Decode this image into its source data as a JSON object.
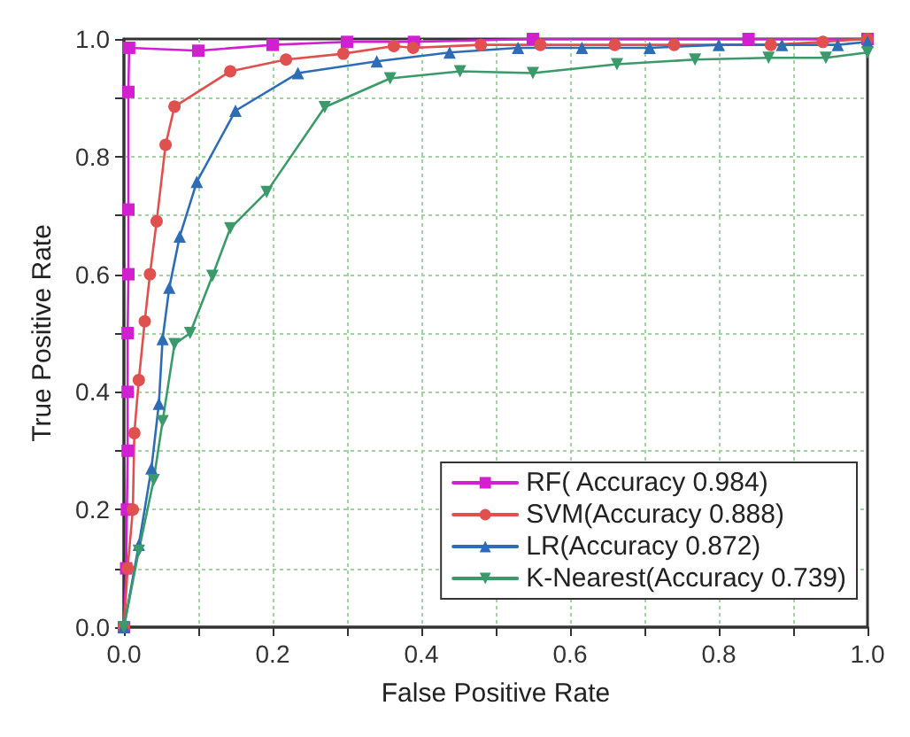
{
  "chart_data": {
    "type": "line",
    "xlabel": "False Positive Rate",
    "ylabel": "True Positive Rate",
    "xlim": [
      0,
      1
    ],
    "ylim": [
      0,
      1
    ],
    "xticks": [
      {
        "value": 0,
        "label": "0.0"
      },
      {
        "value": 0.1,
        "label": null
      },
      {
        "value": 0.2,
        "label": "0.2"
      },
      {
        "value": 0.3,
        "label": null
      },
      {
        "value": 0.4,
        "label": "0.4"
      },
      {
        "value": 0.5,
        "label": null
      },
      {
        "value": 0.6,
        "label": "0.6"
      },
      {
        "value": 0.7,
        "label": null
      },
      {
        "value": 0.8,
        "label": "0.8"
      },
      {
        "value": 0.9,
        "label": null
      },
      {
        "value": 1,
        "label": "1.0"
      }
    ],
    "yticks": [
      {
        "value": 0,
        "label": "0.0"
      },
      {
        "value": 0.1,
        "label": null
      },
      {
        "value": 0.2,
        "label": "0.2"
      },
      {
        "value": 0.3,
        "label": null
      },
      {
        "value": 0.4,
        "label": "0.4"
      },
      {
        "value": 0.5,
        "label": null
      },
      {
        "value": 0.6,
        "label": "0.6"
      },
      {
        "value": 0.7,
        "label": null
      },
      {
        "value": 0.8,
        "label": "0.8"
      },
      {
        "value": 0.9,
        "label": null
      },
      {
        "value": 1,
        "label": "1.0"
      }
    ],
    "grid": true,
    "legend": "bottom right",
    "line_style": "solid",
    "series": [
      {
        "name": "RF( Accuracy 0.984)",
        "color": "#d020d0",
        "marker": "square",
        "x": [
          0,
          0.003,
          0.004,
          0.005,
          0.005,
          0.005,
          0.006,
          0.006,
          0.006,
          0.007,
          0.1,
          0.2,
          0.3,
          0.39,
          0.55,
          0.84,
          1.0
        ],
        "values": [
          0,
          0.1,
          0.2,
          0.3,
          0.4,
          0.5,
          0.6,
          0.71,
          0.91,
          0.985,
          0.98,
          0.99,
          0.995,
          0.995,
          1.0,
          1.0,
          1.0
        ]
      },
      {
        "name": "SVM(Accuracy 0.888)",
        "color": "#e0504e",
        "marker": "circle",
        "x": [
          0,
          0.005,
          0.012,
          0.014,
          0.02,
          0.028,
          0.035,
          0.044,
          0.056,
          0.068,
          0.143,
          0.218,
          0.295,
          0.363,
          0.389,
          0.48,
          0.56,
          0.66,
          0.74,
          0.87,
          0.94,
          1.0
        ],
        "values": [
          0,
          0.1,
          0.2,
          0.33,
          0.42,
          0.52,
          0.6,
          0.69,
          0.82,
          0.885,
          0.945,
          0.965,
          0.975,
          0.988,
          0.985,
          0.99,
          0.99,
          0.99,
          0.99,
          0.99,
          0.995,
          1.0
        ]
      },
      {
        "name": "LR(Accuracy 0.872)",
        "color": "#2e6db5",
        "marker": "triangle",
        "x": [
          0,
          0.02,
          0.037,
          0.047,
          0.052,
          0.061,
          0.075,
          0.098,
          0.15,
          0.234,
          0.34,
          0.438,
          0.53,
          0.616,
          0.707,
          0.8,
          0.885,
          0.96,
          1.0
        ],
        "values": [
          0,
          0.14,
          0.27,
          0.38,
          0.49,
          0.577,
          0.664,
          0.757,
          0.878,
          0.942,
          0.962,
          0.977,
          0.985,
          0.985,
          0.985,
          0.99,
          0.99,
          0.99,
          0.995
        ]
      },
      {
        "name": "K-Nearest(Accuracy 0.739)",
        "color": "#3a9a6a",
        "marker": "triangle-down",
        "x": [
          0,
          0.02,
          0.04,
          0.052,
          0.068,
          0.089,
          0.119,
          0.143,
          0.192,
          0.27,
          0.358,
          0.452,
          0.55,
          0.663,
          0.768,
          0.867,
          0.944,
          1.0
        ],
        "values": [
          0,
          0.13,
          0.25,
          0.35,
          0.481,
          0.5,
          0.597,
          0.678,
          0.74,
          0.884,
          0.933,
          0.945,
          0.942,
          0.957,
          0.965,
          0.968,
          0.968,
          0.977
        ]
      }
    ]
  }
}
